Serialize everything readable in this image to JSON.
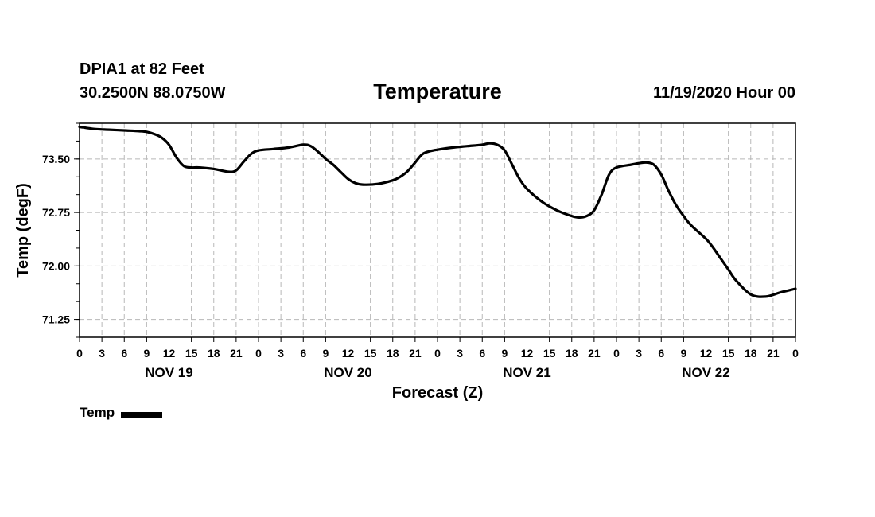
{
  "header": {
    "station": "DPIA1 at 82 Feet",
    "coords": "30.2500N 88.0750W",
    "title": "Temperature",
    "datetime": "11/19/2020 Hour 00"
  },
  "legend": {
    "label": "Temp",
    "color": "#000000"
  },
  "chart_data": {
    "type": "line",
    "title": "Temperature",
    "xlabel": "Forecast (Z)",
    "ylabel": "Temp (degF)",
    "xlim": [
      0,
      96
    ],
    "ylim": [
      71.0,
      74.0
    ],
    "yticks": [
      71.25,
      72.0,
      72.75,
      73.5
    ],
    "ytick_labels": [
      "71.25",
      "72.00",
      "72.75",
      "73.50"
    ],
    "xticks": [
      0,
      3,
      6,
      9,
      12,
      15,
      18,
      21,
      24,
      27,
      30,
      33,
      36,
      39,
      42,
      45,
      48,
      51,
      54,
      57,
      60,
      63,
      66,
      69,
      72,
      75,
      78,
      81,
      84,
      87,
      90,
      93,
      96
    ],
    "xtick_labels": [
      "0",
      "3",
      "6",
      "9",
      "12",
      "15",
      "18",
      "21",
      "0",
      "3",
      "6",
      "9",
      "12",
      "15",
      "18",
      "21",
      "0",
      "3",
      "6",
      "9",
      "12",
      "15",
      "18",
      "21",
      "0",
      "3",
      "6",
      "9",
      "12",
      "15",
      "18",
      "21",
      "0"
    ],
    "day_labels": [
      {
        "x": 12,
        "label": "NOV 19"
      },
      {
        "x": 36,
        "label": "NOV 20"
      },
      {
        "x": 60,
        "label": "NOV 21"
      },
      {
        "x": 84,
        "label": "NOV 22"
      }
    ],
    "grid": true,
    "series": [
      {
        "name": "Temp",
        "color": "#000000",
        "x": [
          0,
          2,
          4,
          6,
          8,
          9,
          10,
          11,
          12,
          13,
          14,
          15,
          16,
          18,
          20,
          21,
          22,
          23,
          24,
          26,
          28,
          30,
          31,
          32,
          33,
          34,
          35,
          36,
          37,
          38,
          40,
          42,
          43,
          44,
          45,
          46,
          47,
          48,
          50,
          52,
          54,
          55,
          56,
          57,
          58,
          59,
          60,
          62,
          64,
          66,
          67,
          68,
          69,
          70,
          71,
          72,
          74,
          75,
          76,
          77,
          78,
          79,
          80,
          81,
          82,
          84,
          85,
          86,
          87,
          88,
          90,
          92,
          94,
          96
        ],
        "values": [
          73.95,
          73.92,
          73.91,
          73.9,
          73.89,
          73.88,
          73.85,
          73.8,
          73.7,
          73.52,
          73.4,
          73.38,
          73.38,
          73.36,
          73.32,
          73.34,
          73.46,
          73.57,
          73.62,
          73.64,
          73.66,
          73.7,
          73.68,
          73.6,
          73.5,
          73.42,
          73.32,
          73.22,
          73.16,
          73.14,
          73.15,
          73.2,
          73.25,
          73.33,
          73.45,
          73.57,
          73.61,
          73.63,
          73.66,
          73.68,
          73.7,
          73.72,
          73.7,
          73.62,
          73.42,
          73.22,
          73.08,
          72.9,
          72.78,
          72.7,
          72.68,
          72.7,
          72.78,
          73.0,
          73.28,
          73.38,
          73.42,
          73.44,
          73.45,
          73.42,
          73.28,
          73.05,
          72.85,
          72.7,
          72.57,
          72.38,
          72.25,
          72.1,
          71.95,
          71.8,
          71.6,
          71.57,
          71.63,
          71.68
        ]
      }
    ]
  }
}
